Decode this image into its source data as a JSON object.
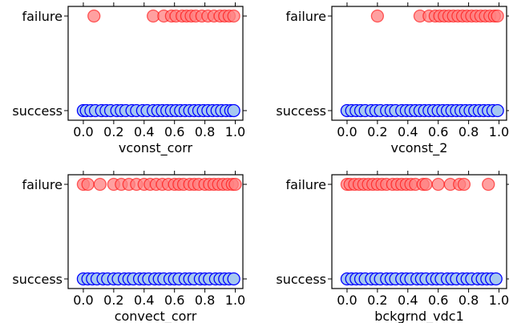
{
  "chart_data": [
    {
      "type": "scatter",
      "xlabel": "vconst_corr",
      "ylabel": "",
      "categories_y": [
        "success",
        "failure"
      ],
      "xticks": [
        "0.0",
        "0.2",
        "0.4",
        "0.6",
        "0.8",
        "1.0"
      ],
      "xlim": [
        -0.1,
        1.05
      ],
      "series": [
        {
          "name": "",
          "color": "#0000ff",
          "x": [
            0.0,
            0.02,
            0.05,
            0.08,
            0.12,
            0.15,
            0.18,
            0.22,
            0.25,
            0.28,
            0.32,
            0.35,
            0.39,
            0.42,
            0.46,
            0.49,
            0.52,
            0.55,
            0.58,
            0.61,
            0.64,
            0.67,
            0.7,
            0.73,
            0.76,
            0.79,
            0.82,
            0.85,
            0.88,
            0.91,
            0.94,
            0.97,
            0.99
          ]
        },
        {
          "name": "",
          "color": "#ff0000",
          "x": [
            0.07,
            0.46,
            0.53,
            0.58,
            0.61,
            0.65,
            0.68,
            0.71,
            0.74,
            0.78,
            0.82,
            0.86,
            0.9,
            0.93,
            0.96,
            0.99
          ]
        }
      ]
    },
    {
      "type": "scatter",
      "xlabel": "vconst_2",
      "ylabel": "",
      "categories_y": [
        "success",
        "failure"
      ],
      "xticks": [
        "0.0",
        "0.2",
        "0.4",
        "0.6",
        "0.8",
        "1.0"
      ],
      "xlim": [
        -0.1,
        1.05
      ],
      "series": [
        {
          "name": "",
          "color": "#0000ff",
          "x": [
            0.0,
            0.03,
            0.06,
            0.09,
            0.12,
            0.16,
            0.19,
            0.22,
            0.26,
            0.29,
            0.32,
            0.36,
            0.39,
            0.42,
            0.45,
            0.48,
            0.51,
            0.54,
            0.57,
            0.6,
            0.63,
            0.66,
            0.69,
            0.72,
            0.75,
            0.78,
            0.81,
            0.84,
            0.87,
            0.9,
            0.93,
            0.96,
            0.99
          ]
        },
        {
          "name": "",
          "color": "#ff0000",
          "x": [
            0.2,
            0.48,
            0.54,
            0.58,
            0.61,
            0.64,
            0.67,
            0.7,
            0.73,
            0.76,
            0.79,
            0.82,
            0.85,
            0.88,
            0.91,
            0.94,
            0.97,
            0.99
          ]
        }
      ]
    },
    {
      "type": "scatter",
      "xlabel": "convect_corr",
      "ylabel": "",
      "categories_y": [
        "success",
        "failure"
      ],
      "xticks": [
        "0.0",
        "0.2",
        "0.4",
        "0.6",
        "0.8",
        "1.0"
      ],
      "xlim": [
        -0.1,
        1.05
      ],
      "series": [
        {
          "name": "",
          "color": "#0000ff",
          "x": [
            0.0,
            0.03,
            0.06,
            0.09,
            0.13,
            0.16,
            0.2,
            0.23,
            0.27,
            0.3,
            0.33,
            0.37,
            0.4,
            0.43,
            0.47,
            0.5,
            0.53,
            0.57,
            0.6,
            0.63,
            0.67,
            0.7,
            0.73,
            0.77,
            0.8,
            0.83,
            0.87,
            0.9,
            0.93,
            0.96,
            0.99
          ]
        },
        {
          "name": "",
          "color": "#ff0000",
          "x": [
            0.0,
            0.03,
            0.11,
            0.2,
            0.25,
            0.3,
            0.35,
            0.4,
            0.44,
            0.48,
            0.52,
            0.56,
            0.6,
            0.63,
            0.66,
            0.7,
            0.73,
            0.76,
            0.8,
            0.83,
            0.86,
            0.89,
            0.92,
            0.95,
            0.98,
            1.0
          ]
        }
      ]
    },
    {
      "type": "scatter",
      "xlabel": "bckgrnd_vdc1",
      "ylabel": "",
      "categories_y": [
        "success",
        "failure"
      ],
      "xticks": [
        "0.0",
        "0.2",
        "0.4",
        "0.6",
        "0.8",
        "1.0"
      ],
      "xlim": [
        -0.1,
        1.05
      ],
      "series": [
        {
          "name": "",
          "color": "#0000ff",
          "x": [
            0.0,
            0.03,
            0.06,
            0.09,
            0.12,
            0.16,
            0.19,
            0.22,
            0.26,
            0.29,
            0.32,
            0.36,
            0.39,
            0.42,
            0.46,
            0.49,
            0.52,
            0.56,
            0.59,
            0.62,
            0.66,
            0.69,
            0.72,
            0.76,
            0.79,
            0.82,
            0.86,
            0.89,
            0.92,
            0.95,
            0.98
          ]
        },
        {
          "name": "",
          "color": "#ff0000",
          "x": [
            0.0,
            0.02,
            0.05,
            0.08,
            0.11,
            0.14,
            0.17,
            0.2,
            0.23,
            0.26,
            0.3,
            0.33,
            0.36,
            0.39,
            0.42,
            0.45,
            0.5,
            0.52,
            0.6,
            0.68,
            0.74,
            0.77,
            0.93
          ]
        }
      ]
    }
  ]
}
